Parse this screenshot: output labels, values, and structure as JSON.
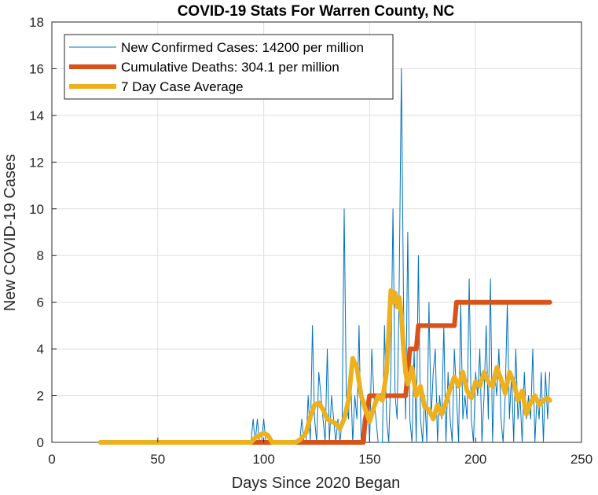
{
  "chart_data": {
    "type": "line",
    "title": "COVID-19 Stats For Warren County, NC",
    "xlabel": "Days Since 2020 Began",
    "ylabel": "New COVID-19 Cases",
    "xlim": [
      0,
      250
    ],
    "ylim": [
      0,
      18
    ],
    "xticks": [
      0,
      50,
      100,
      150,
      200,
      250
    ],
    "yticks": [
      0,
      2,
      4,
      6,
      8,
      10,
      12,
      14,
      16,
      18
    ],
    "grid": true,
    "legend_position": "top-left",
    "series": [
      {
        "name": "New Confirmed Cases: 14200 per million",
        "color": "#0072BD",
        "style": "thin",
        "x": [
          23,
          94,
          95,
          96,
          97,
          98,
          99,
          100,
          101,
          102,
          103,
          104,
          105,
          106,
          107,
          108,
          109,
          110,
          111,
          112,
          113,
          114,
          115,
          116,
          117,
          118,
          119,
          120,
          121,
          122,
          123,
          124,
          125,
          126,
          127,
          128,
          129,
          130,
          131,
          132,
          133,
          134,
          135,
          136,
          137,
          138,
          139,
          140,
          141,
          142,
          143,
          144,
          145,
          146,
          147,
          148,
          149,
          150,
          151,
          152,
          153,
          154,
          155,
          156,
          157,
          158,
          159,
          160,
          161,
          162,
          163,
          164,
          165,
          166,
          167,
          168,
          169,
          170,
          171,
          172,
          173,
          174,
          175,
          176,
          177,
          178,
          179,
          180,
          181,
          182,
          183,
          184,
          185,
          186,
          187,
          188,
          189,
          190,
          191,
          192,
          193,
          194,
          195,
          196,
          197,
          198,
          199,
          200,
          201,
          202,
          203,
          204,
          205,
          206,
          207,
          208,
          209,
          210,
          211,
          212,
          213,
          214,
          215,
          216,
          217,
          218,
          219,
          220,
          221,
          222,
          223,
          224,
          225,
          226,
          227,
          228,
          229,
          230,
          231,
          232,
          233,
          234,
          235
        ],
        "values": [
          0,
          0,
          1,
          0,
          1,
          0,
          0,
          1,
          0,
          0,
          0,
          0,
          0,
          0,
          0,
          0,
          0,
          0,
          0,
          0,
          0,
          0,
          0,
          0,
          0,
          1,
          0,
          0,
          2,
          0,
          5,
          1,
          0,
          3,
          2,
          1,
          0,
          4,
          0,
          2,
          1,
          0,
          1,
          0,
          1,
          10,
          2,
          1,
          3,
          0,
          2,
          1,
          5,
          0,
          1,
          0,
          2,
          0,
          4,
          2,
          1,
          0,
          0,
          0,
          5,
          1,
          0,
          3,
          10,
          2,
          1,
          7,
          16,
          6,
          1,
          9,
          1,
          0,
          4,
          0,
          8,
          1,
          0,
          2,
          0,
          6,
          1,
          3,
          4,
          0,
          2,
          1,
          5,
          0,
          3,
          1,
          0,
          4,
          2,
          0,
          6,
          1,
          2,
          1,
          7,
          1,
          0,
          3,
          2,
          4,
          0,
          2,
          5,
          1,
          7,
          0,
          3,
          2,
          4,
          1,
          0,
          2,
          6,
          1,
          3,
          0,
          4,
          1,
          2,
          0,
          3,
          1,
          2,
          1,
          4,
          0,
          2,
          1,
          3,
          0,
          3,
          1,
          3
        ]
      },
      {
        "name": "Cumulative Deaths: 304.1 per million",
        "color": "#D95319",
        "style": "thick",
        "x": [
          23,
          100,
          147,
          148,
          150,
          166,
          167,
          168,
          169,
          170,
          171,
          172,
          173,
          174,
          175,
          176,
          189,
          190,
          191,
          192,
          195,
          235
        ],
        "values": [
          0,
          0,
          0,
          1,
          2,
          2,
          2,
          3,
          4,
          4,
          4,
          4,
          5,
          5,
          5,
          5,
          5,
          5,
          6,
          6,
          6,
          6
        ]
      },
      {
        "name": "7 Day Case Average",
        "color": "#EDB120",
        "style": "thick",
        "x": [
          23,
          94,
          96,
          98,
          100,
          102,
          104,
          106,
          110,
          115,
          117,
          120,
          122,
          124,
          126,
          128,
          130,
          132,
          134,
          136,
          138,
          140,
          142,
          144,
          146,
          148,
          150,
          152,
          154,
          156,
          158,
          160,
          161,
          162,
          163,
          164,
          165,
          166,
          167,
          168,
          170,
          172,
          174,
          176,
          178,
          180,
          182,
          184,
          186,
          188,
          190,
          192,
          194,
          196,
          198,
          200,
          202,
          204,
          206,
          208,
          210,
          212,
          214,
          216,
          218,
          220,
          222,
          224,
          226,
          228,
          230,
          232,
          234,
          235
        ],
        "values": [
          0,
          0,
          0.2,
          0.3,
          0.4,
          0.3,
          0,
          0,
          0,
          0,
          0.1,
          0.4,
          1.1,
          1.6,
          1.7,
          1.4,
          1.0,
          0.9,
          0.8,
          0.6,
          1.0,
          1.8,
          3.6,
          3.2,
          2.0,
          1.4,
          0.9,
          1.5,
          2.0,
          1.8,
          3.0,
          6.5,
          6.0,
          6.4,
          5.8,
          6.2,
          5.5,
          4.0,
          3.0,
          2.5,
          3.2,
          2.0,
          2.4,
          1.5,
          1.4,
          1.0,
          1.6,
          1.2,
          1.7,
          2.3,
          2.8,
          2.4,
          3.0,
          2.2,
          1.9,
          2.6,
          2.4,
          3.0,
          2.6,
          2.4,
          3.2,
          2.7,
          2.1,
          3.0,
          2.6,
          1.8,
          2.2,
          1.2,
          1.7,
          2.0,
          1.6,
          1.8,
          1.9,
          1.8
        ]
      }
    ]
  }
}
